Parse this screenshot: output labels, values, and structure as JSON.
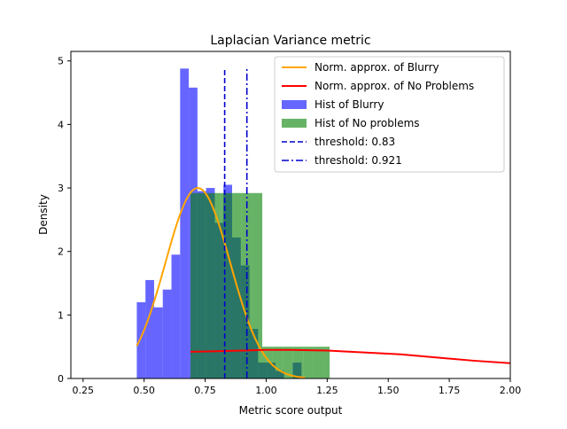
{
  "chart_data": {
    "type": "histogram",
    "title": "Laplacian Variance metric",
    "xlabel": "Metric score output",
    "ylabel": "Density",
    "xlim": [
      0.2,
      2.0
    ],
    "ylim": [
      0,
      5.15
    ],
    "xticks": [
      0.25,
      0.5,
      0.75,
      1.0,
      1.25,
      1.5,
      1.75,
      2.0
    ],
    "xtick_labels": [
      "0.25",
      "0.50",
      "0.75",
      "1.00",
      "1.25",
      "1.50",
      "1.75",
      "2.00"
    ],
    "yticks": [
      0,
      1,
      2,
      3,
      4,
      5
    ],
    "ytick_labels": [
      "0",
      "1",
      "2",
      "3",
      "4",
      "5"
    ],
    "grid": false,
    "legend_position": "top-right",
    "colors": {
      "blurry_curve": "#ffa500",
      "no_problems_curve": "#ff0000",
      "blurry_hist": "#0000ff",
      "no_problems_hist": "#008000",
      "threshold": "#0000cc"
    },
    "hist_blurry": {
      "name": "Hist of Blurry",
      "bins": [
        0.47,
        0.5055,
        0.541,
        0.5765,
        0.612,
        0.6475,
        0.683,
        0.7185,
        0.754,
        0.7895,
        0.825,
        0.8605,
        0.896,
        0.9315,
        0.967,
        1.0025,
        1.038,
        1.0735,
        1.109,
        1.1445,
        1.18
      ],
      "values": [
        1.2,
        1.55,
        1.12,
        1.4,
        1.95,
        4.88,
        4.58,
        2.95,
        3.0,
        2.45,
        3.05,
        2.22,
        1.78,
        0.78,
        0.25,
        0.25,
        0.12,
        0.0,
        0.25,
        0.0
      ]
    },
    "hist_no_problems": {
      "name": "Hist of No problems",
      "bins": [
        0.69,
        0.732,
        0.774,
        0.816,
        0.858,
        0.9,
        0.942,
        0.984,
        1.026,
        1.068,
        1.11,
        1.152,
        1.194,
        1.236,
        1.26
      ],
      "values": [
        2.92,
        2.92,
        2.92,
        2.92,
        2.92,
        2.92,
        2.92,
        0.5,
        0.5,
        0.5,
        0.5,
        0.5,
        0.5,
        0.5
      ]
    },
    "curve_blurry": {
      "name": "Norm. approx. of Blurry",
      "mean": 0.72,
      "std": 0.133,
      "x_range": [
        0.47,
        1.16
      ]
    },
    "curve_no_problems": {
      "name": "Norm. approx. of No Problems",
      "points": [
        [
          0.69,
          0.42
        ],
        [
          0.8,
          0.43
        ],
        [
          0.9,
          0.44
        ],
        [
          1.0,
          0.45
        ],
        [
          1.1,
          0.45
        ],
        [
          1.25,
          0.44
        ],
        [
          1.4,
          0.41
        ],
        [
          1.55,
          0.38
        ],
        [
          1.7,
          0.33
        ],
        [
          1.85,
          0.28
        ],
        [
          2.0,
          0.24
        ]
      ]
    },
    "thresholds": [
      {
        "name": "threshold: 0.83",
        "value": 0.83,
        "style": "dashed",
        "ymax": 4.88
      },
      {
        "name": "threshold: 0.921",
        "value": 0.921,
        "style": "dashdot",
        "ymax": 4.88
      }
    ]
  }
}
